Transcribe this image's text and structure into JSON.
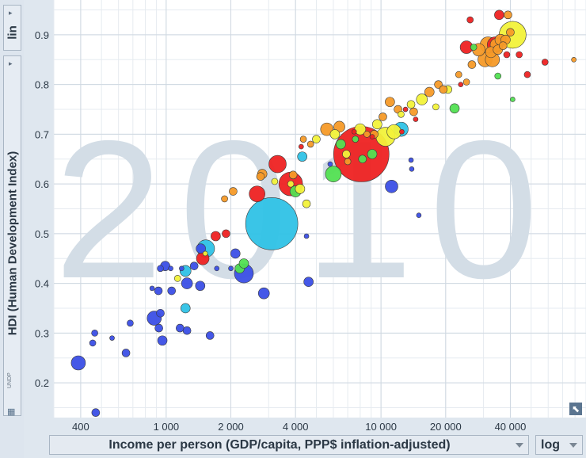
{
  "ui": {
    "y_scale_toggle": "lin",
    "x_scale_toggle": "log",
    "source_tag": "UNDP",
    "grid_icon": "table-grid-icon",
    "corner_icon": "expand-arrow-icon"
  },
  "chart_data": {
    "type": "scatter",
    "title": "",
    "watermark_year": "2010",
    "xlabel": "Income per person (GDP/capita, PPP$ inflation-adjusted)",
    "ylabel": "HDI (Human Development Index)",
    "x_scale": "log",
    "xlim": [
      300,
      90000
    ],
    "ylim": [
      0.13,
      0.97
    ],
    "x_ticks": [
      400,
      1000,
      2000,
      4000,
      10000,
      20000,
      40000
    ],
    "x_tick_labels": [
      "400",
      "1 000",
      "2 000",
      "4 000",
      "10 000",
      "20 000",
      "40 000"
    ],
    "y_ticks": [
      0.2,
      0.3,
      0.4,
      0.5,
      0.6,
      0.7,
      0.8,
      0.9
    ],
    "y_tick_labels": [
      "0.2",
      "0.3",
      "0.4",
      "0.5",
      "0.6",
      "0.7",
      "0.8",
      "0.9"
    ],
    "grid": true,
    "colors": {
      "blue": "#3b4fe6",
      "cyan": "#2fc2e6",
      "green": "#52e052",
      "yellow": "#f2f23a",
      "orange": "#f59a28",
      "red": "#ee2222"
    },
    "points": [
      {
        "x": 390,
        "y": 0.24,
        "s": 9,
        "c": "blue"
      },
      {
        "x": 470,
        "y": 0.14,
        "s": 5,
        "c": "blue"
      },
      {
        "x": 455,
        "y": 0.28,
        "s": 4,
        "c": "blue"
      },
      {
        "x": 465,
        "y": 0.3,
        "s": 4,
        "c": "blue"
      },
      {
        "x": 560,
        "y": 0.29,
        "s": 3,
        "c": "blue"
      },
      {
        "x": 650,
        "y": 0.26,
        "s": 5,
        "c": "blue"
      },
      {
        "x": 680,
        "y": 0.32,
        "s": 4,
        "c": "blue"
      },
      {
        "x": 880,
        "y": 0.33,
        "s": 9,
        "c": "blue"
      },
      {
        "x": 925,
        "y": 0.31,
        "s": 5,
        "c": "blue"
      },
      {
        "x": 960,
        "y": 0.285,
        "s": 6,
        "c": "blue"
      },
      {
        "x": 940,
        "y": 0.34,
        "s": 5,
        "c": "blue"
      },
      {
        "x": 860,
        "y": 0.39,
        "s": 3,
        "c": "blue"
      },
      {
        "x": 920,
        "y": 0.385,
        "s": 5,
        "c": "blue"
      },
      {
        "x": 1060,
        "y": 0.385,
        "s": 5,
        "c": "blue"
      },
      {
        "x": 940,
        "y": 0.43,
        "s": 4,
        "c": "blue"
      },
      {
        "x": 990,
        "y": 0.435,
        "s": 6,
        "c": "blue"
      },
      {
        "x": 1050,
        "y": 0.43,
        "s": 3,
        "c": "blue"
      },
      {
        "x": 1160,
        "y": 0.31,
        "s": 5,
        "c": "blue"
      },
      {
        "x": 1250,
        "y": 0.305,
        "s": 5,
        "c": "blue"
      },
      {
        "x": 1250,
        "y": 0.4,
        "s": 7,
        "c": "blue"
      },
      {
        "x": 1350,
        "y": 0.435,
        "s": 5,
        "c": "blue"
      },
      {
        "x": 1440,
        "y": 0.395,
        "s": 6,
        "c": "blue"
      },
      {
        "x": 1600,
        "y": 0.295,
        "s": 5,
        "c": "blue"
      },
      {
        "x": 1720,
        "y": 0.43,
        "s": 3,
        "c": "blue"
      },
      {
        "x": 1450,
        "y": 0.47,
        "s": 6,
        "c": "blue"
      },
      {
        "x": 2100,
        "y": 0.46,
        "s": 6,
        "c": "blue"
      },
      {
        "x": 2000,
        "y": 0.43,
        "s": 3,
        "c": "blue"
      },
      {
        "x": 2300,
        "y": 0.42,
        "s": 12,
        "c": "blue"
      },
      {
        "x": 2850,
        "y": 0.38,
        "s": 7,
        "c": "blue"
      },
      {
        "x": 4600,
        "y": 0.403,
        "s": 6,
        "c": "blue"
      },
      {
        "x": 4500,
        "y": 0.495,
        "s": 3,
        "c": "blue"
      },
      {
        "x": 11200,
        "y": 0.595,
        "s": 8,
        "c": "blue"
      },
      {
        "x": 13800,
        "y": 0.648,
        "s": 3,
        "c": "blue"
      },
      {
        "x": 13900,
        "y": 0.63,
        "s": 3,
        "c": "blue"
      },
      {
        "x": 15000,
        "y": 0.537,
        "s": 3,
        "c": "blue"
      },
      {
        "x": 5800,
        "y": 0.64,
        "s": 3,
        "c": "blue"
      },
      {
        "x": 1180,
        "y": 0.43,
        "s": 3,
        "c": "blue"
      },
      {
        "x": 1230,
        "y": 0.425,
        "s": 7,
        "c": "cyan"
      },
      {
        "x": 1230,
        "y": 0.35,
        "s": 6,
        "c": "cyan"
      },
      {
        "x": 1530,
        "y": 0.47,
        "s": 11,
        "c": "cyan"
      },
      {
        "x": 3100,
        "y": 0.52,
        "s": 33,
        "c": "cyan"
      },
      {
        "x": 4300,
        "y": 0.655,
        "s": 6,
        "c": "cyan"
      },
      {
        "x": 12400,
        "y": 0.71,
        "s": 9,
        "c": "cyan"
      },
      {
        "x": 2200,
        "y": 0.43,
        "s": 6,
        "c": "green"
      },
      {
        "x": 2300,
        "y": 0.44,
        "s": 6,
        "c": "green"
      },
      {
        "x": 4000,
        "y": 0.585,
        "s": 7,
        "c": "green"
      },
      {
        "x": 6000,
        "y": 0.62,
        "s": 10,
        "c": "green"
      },
      {
        "x": 6500,
        "y": 0.68,
        "s": 6,
        "c": "green"
      },
      {
        "x": 8200,
        "y": 0.65,
        "s": 5,
        "c": "green"
      },
      {
        "x": 7600,
        "y": 0.69,
        "s": 4,
        "c": "green"
      },
      {
        "x": 9100,
        "y": 0.66,
        "s": 6,
        "c": "green"
      },
      {
        "x": 22000,
        "y": 0.752,
        "s": 6,
        "c": "green"
      },
      {
        "x": 35000,
        "y": 0.817,
        "s": 4,
        "c": "green"
      },
      {
        "x": 41000,
        "y": 0.77,
        "s": 3,
        "c": "green"
      },
      {
        "x": 27000,
        "y": 0.875,
        "s": 4,
        "c": "green"
      },
      {
        "x": 1130,
        "y": 0.41,
        "s": 4,
        "c": "yellow"
      },
      {
        "x": 3200,
        "y": 0.605,
        "s": 4,
        "c": "yellow"
      },
      {
        "x": 3800,
        "y": 0.6,
        "s": 4,
        "c": "yellow"
      },
      {
        "x": 4200,
        "y": 0.59,
        "s": 6,
        "c": "yellow"
      },
      {
        "x": 4500,
        "y": 0.56,
        "s": 5,
        "c": "yellow"
      },
      {
        "x": 5000,
        "y": 0.69,
        "s": 5,
        "c": "yellow"
      },
      {
        "x": 6100,
        "y": 0.7,
        "s": 6,
        "c": "yellow"
      },
      {
        "x": 6900,
        "y": 0.66,
        "s": 5,
        "c": "yellow"
      },
      {
        "x": 8000,
        "y": 0.71,
        "s": 7,
        "c": "yellow"
      },
      {
        "x": 9600,
        "y": 0.72,
        "s": 6,
        "c": "yellow"
      },
      {
        "x": 10500,
        "y": 0.695,
        "s": 12,
        "c": "yellow"
      },
      {
        "x": 11500,
        "y": 0.705,
        "s": 9,
        "c": "yellow"
      },
      {
        "x": 13800,
        "y": 0.76,
        "s": 5,
        "c": "yellow"
      },
      {
        "x": 15500,
        "y": 0.77,
        "s": 7,
        "c": "yellow"
      },
      {
        "x": 18000,
        "y": 0.755,
        "s": 4,
        "c": "yellow"
      },
      {
        "x": 20500,
        "y": 0.79,
        "s": 5,
        "c": "yellow"
      },
      {
        "x": 12400,
        "y": 0.74,
        "s": 4,
        "c": "yellow"
      },
      {
        "x": 41000,
        "y": 0.9,
        "s": 17,
        "c": "yellow"
      },
      {
        "x": 1520,
        "y": 0.46,
        "s": 3,
        "c": "yellow"
      },
      {
        "x": 1870,
        "y": 0.57,
        "s": 4,
        "c": "orange"
      },
      {
        "x": 2050,
        "y": 0.585,
        "s": 5,
        "c": "orange"
      },
      {
        "x": 2750,
        "y": 0.615,
        "s": 5,
        "c": "orange"
      },
      {
        "x": 2800,
        "y": 0.62,
        "s": 6,
        "c": "orange"
      },
      {
        "x": 3900,
        "y": 0.618,
        "s": 5,
        "c": "orange"
      },
      {
        "x": 4350,
        "y": 0.69,
        "s": 4,
        "c": "orange"
      },
      {
        "x": 4700,
        "y": 0.68,
        "s": 4,
        "c": "orange"
      },
      {
        "x": 5600,
        "y": 0.71,
        "s": 8,
        "c": "orange"
      },
      {
        "x": 6400,
        "y": 0.715,
        "s": 7,
        "c": "orange"
      },
      {
        "x": 7000,
        "y": 0.645,
        "s": 4,
        "c": "orange"
      },
      {
        "x": 8600,
        "y": 0.7,
        "s": 4,
        "c": "orange"
      },
      {
        "x": 9300,
        "y": 0.7,
        "s": 5,
        "c": "orange"
      },
      {
        "x": 10200,
        "y": 0.735,
        "s": 5,
        "c": "orange"
      },
      {
        "x": 11000,
        "y": 0.765,
        "s": 6,
        "c": "orange"
      },
      {
        "x": 12000,
        "y": 0.75,
        "s": 5,
        "c": "orange"
      },
      {
        "x": 14200,
        "y": 0.745,
        "s": 5,
        "c": "orange"
      },
      {
        "x": 16800,
        "y": 0.785,
        "s": 6,
        "c": "orange"
      },
      {
        "x": 18500,
        "y": 0.8,
        "s": 5,
        "c": "orange"
      },
      {
        "x": 19500,
        "y": 0.79,
        "s": 5,
        "c": "orange"
      },
      {
        "x": 23000,
        "y": 0.82,
        "s": 4,
        "c": "orange"
      },
      {
        "x": 25000,
        "y": 0.805,
        "s": 4,
        "c": "orange"
      },
      {
        "x": 26500,
        "y": 0.84,
        "s": 5,
        "c": "orange"
      },
      {
        "x": 28500,
        "y": 0.87,
        "s": 8,
        "c": "orange"
      },
      {
        "x": 30500,
        "y": 0.85,
        "s": 9,
        "c": "orange"
      },
      {
        "x": 31500,
        "y": 0.88,
        "s": 10,
        "c": "orange"
      },
      {
        "x": 32500,
        "y": 0.865,
        "s": 7,
        "c": "orange"
      },
      {
        "x": 34500,
        "y": 0.88,
        "s": 8,
        "c": "orange"
      },
      {
        "x": 36000,
        "y": 0.89,
        "s": 7,
        "c": "orange"
      },
      {
        "x": 38000,
        "y": 0.89,
        "s": 6,
        "c": "orange"
      },
      {
        "x": 40000,
        "y": 0.905,
        "s": 5,
        "c": "orange"
      },
      {
        "x": 35000,
        "y": 0.87,
        "s": 6,
        "c": "orange"
      },
      {
        "x": 39000,
        "y": 0.94,
        "s": 5,
        "c": "orange"
      },
      {
        "x": 37000,
        "y": 0.878,
        "s": 5,
        "c": "orange"
      },
      {
        "x": 33000,
        "y": 0.85,
        "s": 9,
        "c": "orange"
      },
      {
        "x": 79000,
        "y": 0.85,
        "s": 3,
        "c": "orange"
      },
      {
        "x": 1700,
        "y": 0.495,
        "s": 6,
        "c": "red"
      },
      {
        "x": 1900,
        "y": 0.5,
        "s": 5,
        "c": "red"
      },
      {
        "x": 1480,
        "y": 0.45,
        "s": 8,
        "c": "red"
      },
      {
        "x": 2650,
        "y": 0.58,
        "s": 10,
        "c": "red"
      },
      {
        "x": 3300,
        "y": 0.64,
        "s": 11,
        "c": "red"
      },
      {
        "x": 3800,
        "y": 0.6,
        "s": 15,
        "c": "red"
      },
      {
        "x": 4250,
        "y": 0.675,
        "s": 3,
        "c": "red"
      },
      {
        "x": 7500,
        "y": 0.705,
        "s": 3,
        "c": "red"
      },
      {
        "x": 8100,
        "y": 0.66,
        "s": 35,
        "c": "red"
      },
      {
        "x": 9100,
        "y": 0.695,
        "s": 3,
        "c": "red"
      },
      {
        "x": 12500,
        "y": 0.705,
        "s": 3,
        "c": "red"
      },
      {
        "x": 14500,
        "y": 0.73,
        "s": 3,
        "c": "red"
      },
      {
        "x": 23500,
        "y": 0.8,
        "s": 3,
        "c": "red"
      },
      {
        "x": 25000,
        "y": 0.875,
        "s": 8,
        "c": "red"
      },
      {
        "x": 26000,
        "y": 0.93,
        "s": 4,
        "c": "red"
      },
      {
        "x": 34000,
        "y": 0.88,
        "s": 10,
        "c": "red"
      },
      {
        "x": 35500,
        "y": 0.94,
        "s": 6,
        "c": "red"
      },
      {
        "x": 38500,
        "y": 0.86,
        "s": 4,
        "c": "red"
      },
      {
        "x": 44000,
        "y": 0.86,
        "s": 4,
        "c": "red"
      },
      {
        "x": 48000,
        "y": 0.82,
        "s": 4,
        "c": "red"
      },
      {
        "x": 58000,
        "y": 0.845,
        "s": 4,
        "c": "red"
      },
      {
        "x": 13000,
        "y": 0.75,
        "s": 3,
        "c": "red"
      }
    ]
  }
}
